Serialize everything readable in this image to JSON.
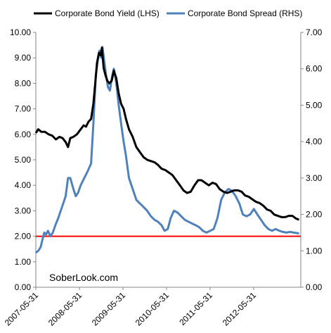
{
  "chart_data": {
    "type": "line",
    "legend": {
      "position": "top",
      "items": [
        {
          "label": "Corporate Bond Yield (LHS)",
          "color": "#000000"
        },
        {
          "label": "Corporate Bond Spread (RHS)",
          "color": "#4F81BD"
        }
      ]
    },
    "watermark": "SoberLook.com",
    "left_axis": {
      "range": [
        0,
        10
      ],
      "ticks": [
        "0.00",
        "1.00",
        "2.00",
        "3.00",
        "4.00",
        "5.00",
        "6.00",
        "7.00",
        "8.00",
        "9.00",
        "10.00"
      ]
    },
    "right_axis": {
      "range": [
        0,
        7
      ],
      "ticks": [
        "0.00",
        "1.00",
        "2.00",
        "3.00",
        "4.00",
        "5.00",
        "6.00",
        "7.00"
      ]
    },
    "x_axis": {
      "range": [
        "2007-05-31",
        "2013-06-30"
      ],
      "ticks": [
        "2007-05-31",
        "2008-05-31",
        "2009-05-31",
        "2010-05-31",
        "2011-05-31",
        "2012-05-31"
      ]
    },
    "grid": false,
    "reference_line": {
      "axis": "left",
      "value": 2.0,
      "color": "#FF0000"
    },
    "series": [
      {
        "name": "Corporate Bond Yield (LHS)",
        "axis": "left",
        "color": "#000000",
        "points": [
          [
            "2007-05-31",
            6.05
          ],
          [
            "2007-06-20",
            6.2
          ],
          [
            "2007-07-15",
            6.1
          ],
          [
            "2007-08-15",
            6.1
          ],
          [
            "2007-09-15",
            6.0
          ],
          [
            "2007-10-15",
            5.95
          ],
          [
            "2007-11-15",
            5.8
          ],
          [
            "2007-12-15",
            5.9
          ],
          [
            "2008-01-10",
            5.85
          ],
          [
            "2008-02-05",
            5.7
          ],
          [
            "2008-02-25",
            5.5
          ],
          [
            "2008-03-15",
            5.85
          ],
          [
            "2008-04-10",
            5.9
          ],
          [
            "2008-05-10",
            6.0
          ],
          [
            "2008-06-10",
            6.2
          ],
          [
            "2008-07-05",
            6.35
          ],
          [
            "2008-07-25",
            6.3
          ],
          [
            "2008-08-15",
            6.5
          ],
          [
            "2008-09-05",
            6.6
          ],
          [
            "2008-09-25",
            7.2
          ],
          [
            "2008-10-10",
            8.0
          ],
          [
            "2008-10-25",
            8.8
          ],
          [
            "2008-11-10",
            9.2
          ],
          [
            "2008-11-25",
            9.1
          ],
          [
            "2008-12-05",
            9.4
          ],
          [
            "2008-12-20",
            8.6
          ],
          [
            "2009-01-05",
            8.3
          ],
          [
            "2009-01-20",
            8.1
          ],
          [
            "2009-02-05",
            8.0
          ],
          [
            "2009-02-25",
            8.1
          ],
          [
            "2009-03-15",
            8.5
          ],
          [
            "2009-04-05",
            8.2
          ],
          [
            "2009-04-25",
            7.6
          ],
          [
            "2009-05-15",
            7.2
          ],
          [
            "2009-06-05",
            7.0
          ],
          [
            "2009-06-25",
            6.6
          ],
          [
            "2009-07-20",
            6.2
          ],
          [
            "2009-08-20",
            5.9
          ],
          [
            "2009-09-20",
            5.5
          ],
          [
            "2009-10-20",
            5.3
          ],
          [
            "2009-11-20",
            5.1
          ],
          [
            "2009-12-20",
            5.0
          ],
          [
            "2010-01-20",
            4.95
          ],
          [
            "2010-02-20",
            4.9
          ],
          [
            "2010-03-20",
            4.8
          ],
          [
            "2010-04-20",
            4.65
          ],
          [
            "2010-05-20",
            4.6
          ],
          [
            "2010-06-20",
            4.5
          ],
          [
            "2010-07-20",
            4.4
          ],
          [
            "2010-08-20",
            4.2
          ],
          [
            "2010-09-20",
            4.0
          ],
          [
            "2010-10-20",
            3.8
          ],
          [
            "2010-11-20",
            3.7
          ],
          [
            "2010-12-20",
            3.75
          ],
          [
            "2011-01-20",
            4.0
          ],
          [
            "2011-02-20",
            4.2
          ],
          [
            "2011-03-20",
            4.2
          ],
          [
            "2011-04-20",
            4.1
          ],
          [
            "2011-05-20",
            4.0
          ],
          [
            "2011-06-20",
            4.1
          ],
          [
            "2011-07-20",
            4.05
          ],
          [
            "2011-08-20",
            3.85
          ],
          [
            "2011-09-20",
            3.75
          ],
          [
            "2011-10-20",
            3.7
          ],
          [
            "2011-11-20",
            3.75
          ],
          [
            "2011-12-20",
            3.8
          ],
          [
            "2012-01-20",
            3.8
          ],
          [
            "2012-02-20",
            3.75
          ],
          [
            "2012-03-20",
            3.6
          ],
          [
            "2012-04-20",
            3.55
          ],
          [
            "2012-05-20",
            3.45
          ],
          [
            "2012-06-20",
            3.35
          ],
          [
            "2012-07-20",
            3.3
          ],
          [
            "2012-08-20",
            3.2
          ],
          [
            "2012-09-20",
            3.05
          ],
          [
            "2012-10-20",
            3.0
          ],
          [
            "2012-11-20",
            2.85
          ],
          [
            "2012-12-20",
            2.8
          ],
          [
            "2013-01-20",
            2.75
          ],
          [
            "2013-02-20",
            2.75
          ],
          [
            "2013-03-20",
            2.8
          ],
          [
            "2013-04-20",
            2.8
          ],
          [
            "2013-05-20",
            2.7
          ],
          [
            "2013-06-15",
            2.65
          ]
        ]
      },
      {
        "name": "Corporate Bond Spread (RHS)",
        "axis": "right",
        "color": "#4F81BD",
        "points": [
          [
            "2007-05-31",
            0.95
          ],
          [
            "2007-06-20",
            1.0
          ],
          [
            "2007-07-10",
            1.1
          ],
          [
            "2007-07-25",
            1.3
          ],
          [
            "2007-08-10",
            1.5
          ],
          [
            "2007-08-25",
            1.45
          ],
          [
            "2007-09-10",
            1.55
          ],
          [
            "2007-09-30",
            1.4
          ],
          [
            "2007-10-20",
            1.5
          ],
          [
            "2007-11-10",
            1.7
          ],
          [
            "2007-12-05",
            1.9
          ],
          [
            "2008-01-05",
            2.2
          ],
          [
            "2008-02-05",
            2.5
          ],
          [
            "2008-02-25",
            3.0
          ],
          [
            "2008-03-15",
            3.0
          ],
          [
            "2008-04-10",
            2.7
          ],
          [
            "2008-04-30",
            2.5
          ],
          [
            "2008-05-20",
            2.6
          ],
          [
            "2008-06-10",
            2.8
          ],
          [
            "2008-07-10",
            3.0
          ],
          [
            "2008-08-10",
            3.2
          ],
          [
            "2008-09-05",
            3.4
          ],
          [
            "2008-09-25",
            4.5
          ],
          [
            "2008-10-15",
            5.8
          ],
          [
            "2008-10-30",
            6.2
          ],
          [
            "2008-11-15",
            6.5
          ],
          [
            "2008-11-30",
            6.3
          ],
          [
            "2008-12-10",
            6.6
          ],
          [
            "2008-12-25",
            6.2
          ],
          [
            "2009-01-10",
            5.8
          ],
          [
            "2009-01-25",
            5.5
          ],
          [
            "2009-02-10",
            5.4
          ],
          [
            "2009-03-01",
            5.8
          ],
          [
            "2009-03-15",
            6.0
          ],
          [
            "2009-04-05",
            5.6
          ],
          [
            "2009-04-25",
            5.0
          ],
          [
            "2009-05-15",
            4.5
          ],
          [
            "2009-06-05",
            4.0
          ],
          [
            "2009-06-25",
            3.6
          ],
          [
            "2009-07-20",
            3.0
          ],
          [
            "2009-08-20",
            2.7
          ],
          [
            "2009-09-20",
            2.4
          ],
          [
            "2009-10-20",
            2.3
          ],
          [
            "2009-11-20",
            2.2
          ],
          [
            "2009-12-20",
            2.1
          ],
          [
            "2010-01-20",
            1.95
          ],
          [
            "2010-02-20",
            1.85
          ],
          [
            "2010-03-20",
            1.8
          ],
          [
            "2010-04-20",
            1.7
          ],
          [
            "2010-05-15",
            1.55
          ],
          [
            "2010-06-10",
            1.6
          ],
          [
            "2010-07-05",
            1.9
          ],
          [
            "2010-08-01",
            2.1
          ],
          [
            "2010-09-01",
            2.05
          ],
          [
            "2010-10-01",
            1.95
          ],
          [
            "2010-11-01",
            1.85
          ],
          [
            "2010-12-01",
            1.8
          ],
          [
            "2011-01-01",
            1.75
          ],
          [
            "2011-02-01",
            1.7
          ],
          [
            "2011-03-01",
            1.65
          ],
          [
            "2011-04-01",
            1.55
          ],
          [
            "2011-05-01",
            1.5
          ],
          [
            "2011-06-01",
            1.55
          ],
          [
            "2011-07-01",
            1.6
          ],
          [
            "2011-08-01",
            1.9
          ],
          [
            "2011-09-01",
            2.4
          ],
          [
            "2011-10-01",
            2.6
          ],
          [
            "2011-11-01",
            2.7
          ],
          [
            "2011-12-01",
            2.65
          ],
          [
            "2012-01-01",
            2.5
          ],
          [
            "2012-02-01",
            2.3
          ],
          [
            "2012-03-01",
            2.0
          ],
          [
            "2012-04-01",
            1.95
          ],
          [
            "2012-05-01",
            2.0
          ],
          [
            "2012-06-01",
            2.15
          ],
          [
            "2012-07-01",
            2.0
          ],
          [
            "2012-08-01",
            1.85
          ],
          [
            "2012-09-01",
            1.7
          ],
          [
            "2012-10-01",
            1.6
          ],
          [
            "2012-11-01",
            1.55
          ],
          [
            "2012-12-01",
            1.6
          ],
          [
            "2013-01-01",
            1.55
          ],
          [
            "2013-02-01",
            1.52
          ],
          [
            "2013-03-01",
            1.5
          ],
          [
            "2013-04-01",
            1.52
          ],
          [
            "2013-05-01",
            1.5
          ],
          [
            "2013-06-15",
            1.48
          ]
        ]
      }
    ]
  }
}
